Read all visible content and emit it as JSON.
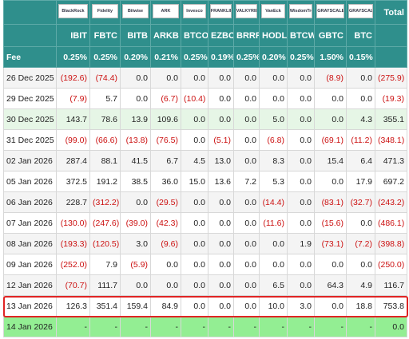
{
  "table": {
    "logos": [
      "BlackRock",
      "Fidelity",
      "Bitwise",
      "ARK",
      "Invesco",
      "FRANKLIN TEMPLETON",
      "VALKYRIE",
      "VanEck",
      "WisdomTree",
      "GRAYSCALE",
      "GRAYSCALE"
    ],
    "total_header": "Total",
    "columns": [
      "IBIT",
      "FBTC",
      "BITB",
      "ARKB",
      "BTCO",
      "EZBC",
      "BRRR",
      "HODL",
      "BTCW",
      "GBTC",
      "BTC"
    ],
    "fee": {
      "label": "Fee",
      "values": [
        "0.25%",
        "0.25%",
        "0.20%",
        "0.21%",
        "0.25%",
        "0.19%",
        "0.25%",
        "0.20%",
        "0.25%",
        "1.50%",
        "0.15%"
      ]
    },
    "rows": [
      {
        "date": "26 Dec 2025",
        "cells": [
          "(192.6)",
          "(74.4)",
          "0.0",
          "0.0",
          "0.0",
          "0.0",
          "0.0",
          "0.0",
          "0.0",
          "(8.9)",
          "0.0",
          "(275.9)"
        ]
      },
      {
        "date": "29 Dec 2025",
        "cells": [
          "(7.9)",
          "5.7",
          "0.0",
          "(6.7)",
          "(10.4)",
          "0.0",
          "0.0",
          "0.0",
          "0.0",
          "0.0",
          "0.0",
          "(19.3)"
        ]
      },
      {
        "date": "30 Dec 2025",
        "cells": [
          "143.7",
          "78.6",
          "13.9",
          "109.6",
          "0.0",
          "0.0",
          "0.0",
          "5.0",
          "0.0",
          "0.0",
          "4.3",
          "355.1"
        ]
      },
      {
        "date": "31 Dec 2025",
        "cells": [
          "(99.0)",
          "(66.6)",
          "(13.8)",
          "(76.5)",
          "0.0",
          "(5.1)",
          "0.0",
          "(6.8)",
          "0.0",
          "(69.1)",
          "(11.2)",
          "(348.1)"
        ]
      },
      {
        "date": "02 Jan 2026",
        "cells": [
          "287.4",
          "88.1",
          "41.5",
          "6.7",
          "4.5",
          "13.0",
          "0.0",
          "8.3",
          "0.0",
          "15.4",
          "6.4",
          "471.3"
        ]
      },
      {
        "date": "05 Jan 2026",
        "cells": [
          "372.5",
          "191.2",
          "38.5",
          "36.0",
          "15.0",
          "13.6",
          "7.2",
          "5.3",
          "0.0",
          "0.0",
          "17.9",
          "697.2"
        ]
      },
      {
        "date": "06 Jan 2026",
        "cells": [
          "228.7",
          "(312.2)",
          "0.0",
          "(29.5)",
          "0.0",
          "0.0",
          "0.0",
          "(14.4)",
          "0.0",
          "(83.1)",
          "(32.7)",
          "(243.2)"
        ]
      },
      {
        "date": "07 Jan 2026",
        "cells": [
          "(130.0)",
          "(247.6)",
          "(39.0)",
          "(42.3)",
          "0.0",
          "0.0",
          "0.0",
          "(11.6)",
          "0.0",
          "(15.6)",
          "0.0",
          "(486.1)"
        ]
      },
      {
        "date": "08 Jan 2026",
        "cells": [
          "(193.3)",
          "(120.5)",
          "3.0",
          "(9.6)",
          "0.0",
          "0.0",
          "0.0",
          "0.0",
          "1.9",
          "(73.1)",
          "(7.2)",
          "(398.8)"
        ]
      },
      {
        "date": "09 Jan 2026",
        "cells": [
          "(252.0)",
          "7.9",
          "(5.9)",
          "0.0",
          "0.0",
          "0.0",
          "0.0",
          "0.0",
          "0.0",
          "0.0",
          "0.0",
          "(250.0)"
        ]
      },
      {
        "date": "12 Jan 2026",
        "cells": [
          "(70.7)",
          "111.7",
          "0.0",
          "0.0",
          "0.0",
          "0.0",
          "0.0",
          "6.5",
          "0.0",
          "64.3",
          "4.9",
          "116.7"
        ]
      },
      {
        "date": "13 Jan 2026",
        "cells": [
          "126.3",
          "351.4",
          "159.4",
          "84.9",
          "0.0",
          "0.0",
          "0.0",
          "10.0",
          "3.0",
          "0.0",
          "18.8",
          "753.8"
        ]
      },
      {
        "date": "14 Jan 2026",
        "cells": [
          "-",
          "-",
          "-",
          "-",
          "-",
          "-",
          "-",
          "-",
          "-",
          "-",
          "-",
          "0.0"
        ]
      }
    ]
  }
}
